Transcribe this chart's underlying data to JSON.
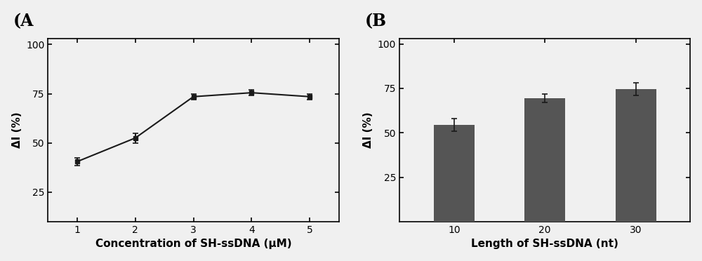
{
  "panel_A": {
    "x": [
      1,
      2,
      3,
      4,
      5
    ],
    "y": [
      40.5,
      52.5,
      73.5,
      75.5,
      73.5
    ],
    "yerr": [
      2.0,
      2.5,
      1.5,
      1.5,
      1.5
    ],
    "xlabel": "Concentration of SH-ssDNA (μM)",
    "ylabel": "ΔI (%)",
    "label": "(A",
    "ylim": [
      10,
      103
    ],
    "yticks": [
      25,
      50,
      75,
      100
    ],
    "xticks": [
      1,
      2,
      3,
      4,
      5
    ],
    "line_color": "#1a1a1a",
    "marker": "s",
    "markersize": 5
  },
  "panel_B": {
    "x": [
      10,
      20,
      30
    ],
    "y": [
      54.5,
      69.5,
      74.5
    ],
    "yerr": [
      3.5,
      2.5,
      3.5
    ],
    "xlabel": "Length of SH-ssDNA (nt)",
    "ylabel": "ΔI (%)",
    "label": "(B",
    "ylim": [
      0,
      103
    ],
    "yticks": [
      25,
      50,
      75,
      100
    ],
    "xticks": [
      10,
      20,
      30
    ],
    "bar_color": "#555555",
    "bar_width": 4.5,
    "ecolor": "#1a1a1a"
  },
  "background_color": "#f0f0f0",
  "font_size_label": 11,
  "font_size_panel": 17,
  "font_size_tick": 10
}
